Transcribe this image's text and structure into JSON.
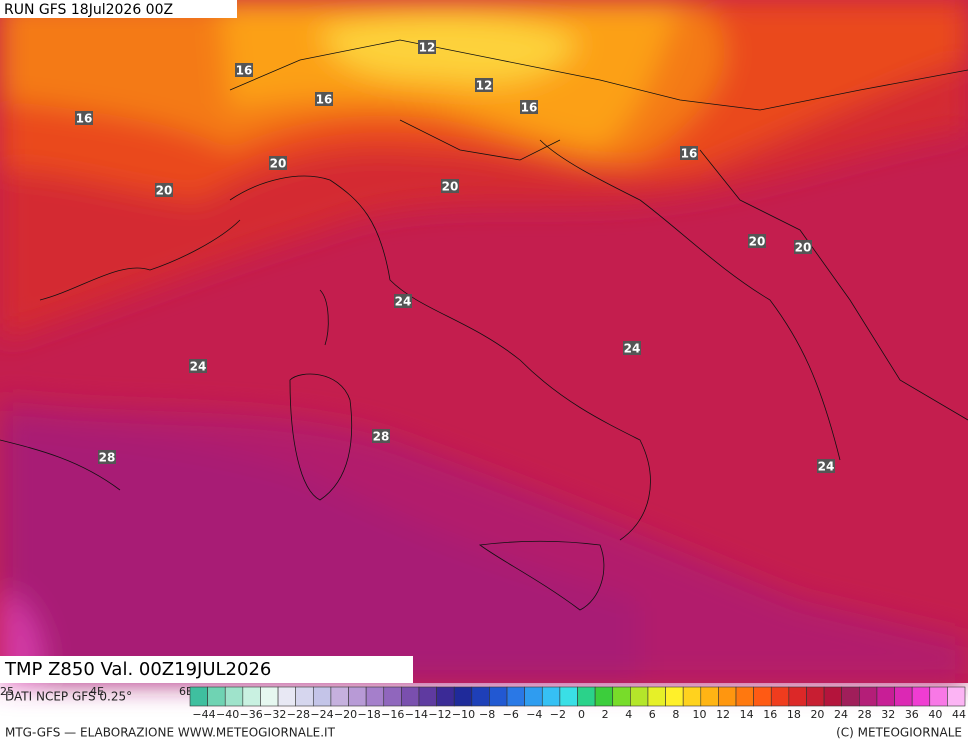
{
  "header": {
    "run": "RUN GFS 18Jul2026 00Z"
  },
  "map": {
    "isotherm_labels": [
      16,
      12,
      16,
      12,
      16,
      16,
      16,
      20,
      20,
      20,
      20,
      20,
      24,
      24,
      24,
      28,
      28,
      24
    ],
    "lon_labels": [
      "25",
      "4E",
      "6E"
    ]
  },
  "footer": {
    "field": "TMP Z850 Val. 00Z19JUL2026",
    "source": "DATI NCEP GFS 0.25°",
    "credit": "MTG-GFS — ELABORAZIONE WWW.METEOGIORNALE.IT",
    "copyright": "(C) METEOGIORNALE"
  },
  "legend": {
    "labels": [
      "−44",
      "−40",
      "−36",
      "−32",
      "−28",
      "−24",
      "−20",
      "−18",
      "−16",
      "−14",
      "−12",
      "−10",
      "−8",
      "−6",
      "−4",
      "−2",
      "0",
      "2",
      "4",
      "6",
      "8",
      "10",
      "12",
      "14",
      "16",
      "18",
      "20",
      "24",
      "28",
      "32",
      "36",
      "40",
      "44"
    ],
    "colors": [
      "#3fbf9f",
      "#6fd3b3",
      "#9fe3cb",
      "#c9f1e1",
      "#e6f7f0",
      "#e8e8f4",
      "#d6d6ee",
      "#c4c4e8",
      "#c6b0de",
      "#b89ad6",
      "#a57fcb",
      "#9066bd",
      "#7a4fae",
      "#5f3aa0",
      "#3b2a96",
      "#1f2a9a",
      "#1e3fb8",
      "#2258d2",
      "#2a78e6",
      "#2f9cf0",
      "#36c0f4",
      "#3adfe6",
      "#2bd28a",
      "#3ccd3c",
      "#78dc2a",
      "#b4e62a",
      "#e6f028",
      "#fff02a",
      "#ffd21e",
      "#ffb414",
      "#ff960f",
      "#ff780f",
      "#ff5a14",
      "#f03c1e",
      "#dc2828",
      "#c81e32",
      "#b4143c",
      "#a01e5a",
      "#b41e78",
      "#c81e96",
      "#dc28b4",
      "#f03cd2",
      "#f878e6",
      "#fcb4f4"
    ]
  }
}
